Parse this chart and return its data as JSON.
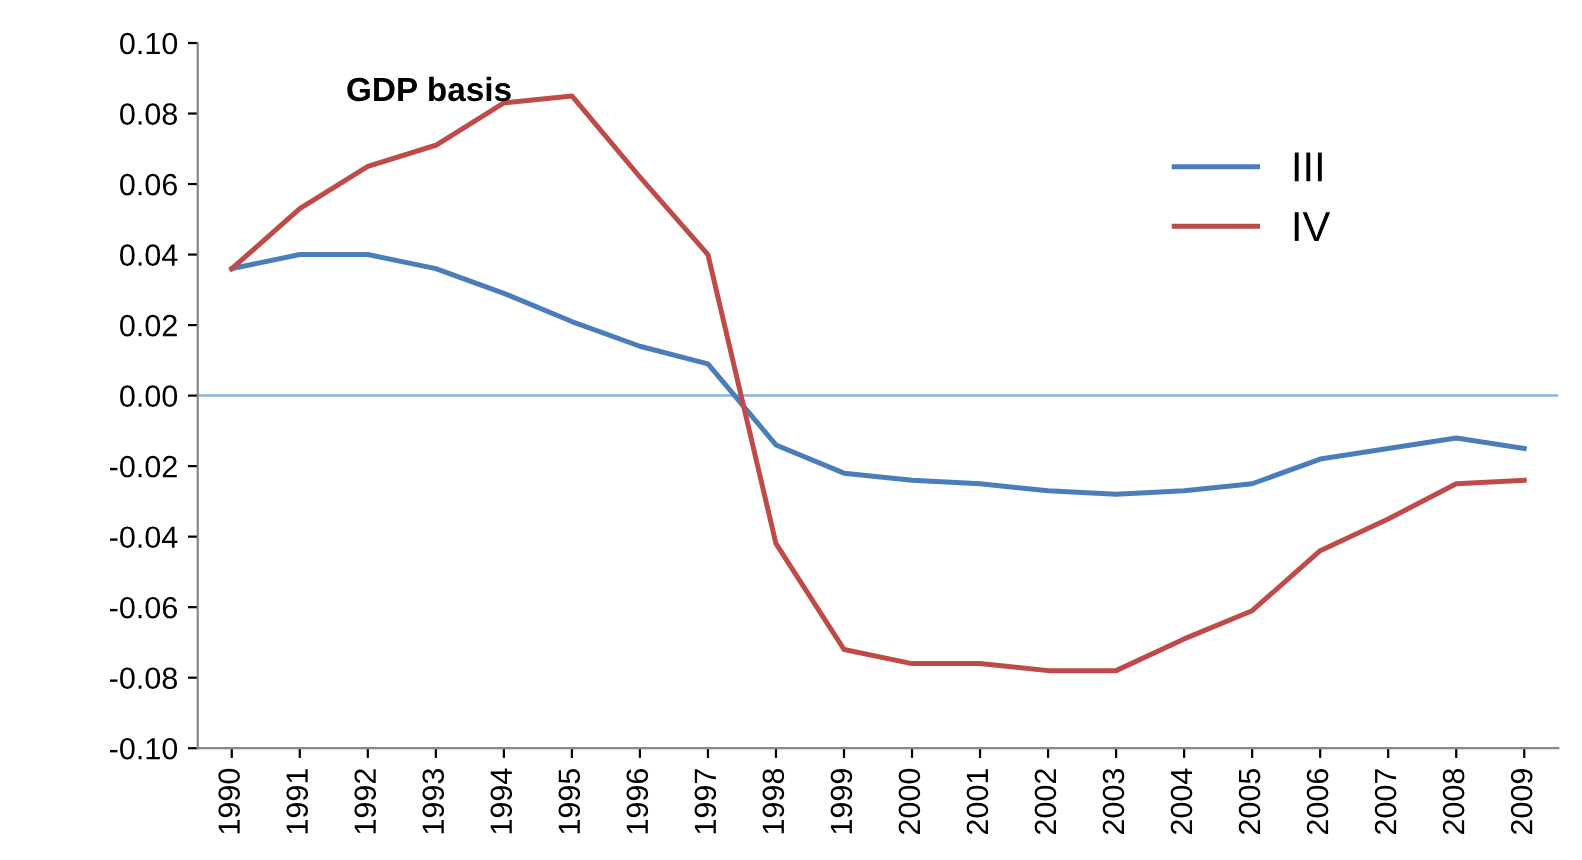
{
  "chart_data": {
    "type": "line",
    "title": "GDP basis",
    "categories": [
      "1990",
      "1991",
      "1992",
      "1993",
      "1994",
      "1995",
      "1996",
      "1997",
      "1998",
      "1999",
      "2000",
      "2001",
      "2002",
      "2003",
      "2004",
      "2005",
      "2006",
      "2007",
      "2008",
      "2009"
    ],
    "series": [
      {
        "name": "III",
        "color": "#4a7ebb",
        "values": [
          0.036,
          0.04,
          0.04,
          0.036,
          0.029,
          0.021,
          0.014,
          0.009,
          -0.014,
          -0.022,
          -0.024,
          -0.025,
          -0.027,
          -0.028,
          -0.027,
          -0.025,
          -0.018,
          -0.015,
          -0.012,
          -0.015
        ]
      },
      {
        "name": "IV",
        "color": "#be4b48",
        "values": [
          0.036,
          0.053,
          0.065,
          0.071,
          0.083,
          0.085,
          0.062,
          0.04,
          -0.042,
          -0.072,
          -0.076,
          -0.076,
          -0.078,
          -0.078,
          -0.069,
          -0.061,
          -0.044,
          -0.035,
          -0.025,
          -0.024
        ]
      }
    ],
    "ylim": [
      -0.1,
      0.1
    ],
    "yticks": [
      {
        "value": -0.1,
        "label": "-0.10"
      },
      {
        "value": -0.08,
        "label": "-0.08"
      },
      {
        "value": -0.06,
        "label": "-0.06"
      },
      {
        "value": -0.04,
        "label": "-0.04"
      },
      {
        "value": -0.02,
        "label": "-0.02"
      },
      {
        "value": 0,
        "label": "0.00"
      },
      {
        "value": 0.02,
        "label": "0.02"
      },
      {
        "value": 0.04,
        "label": "0.04"
      },
      {
        "value": 0.06,
        "label": "0.06"
      },
      {
        "value": 0.08,
        "label": "0.08"
      },
      {
        "value": 0.1,
        "label": "0.10"
      }
    ],
    "ref_lines": [
      {
        "axis": "y",
        "value": 0,
        "color": "#8db3e2"
      }
    ],
    "grid": false,
    "legend": "top right",
    "marker": "none",
    "line_style": "solid"
  }
}
